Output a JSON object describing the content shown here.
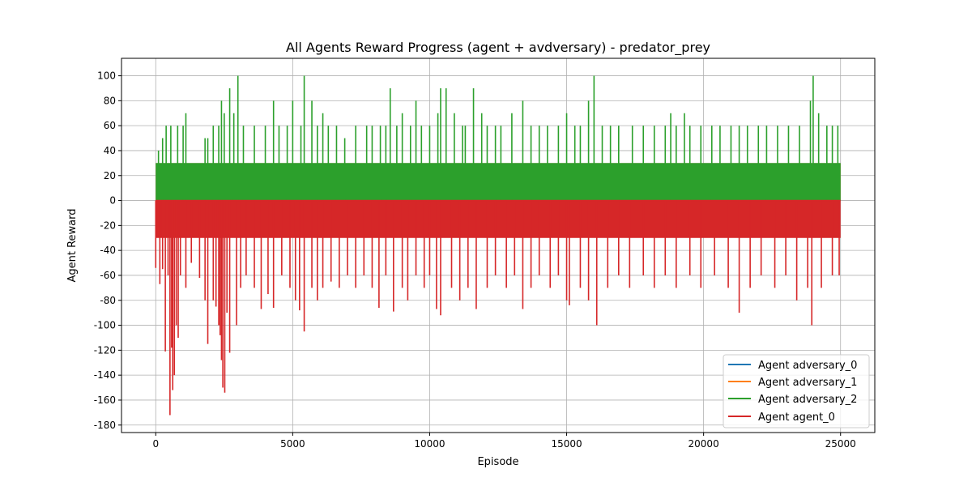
{
  "chart_data": {
    "type": "line",
    "title": "All Agents Reward Progress (agent + avdversary) - predator_prey",
    "xlabel": "Episode",
    "ylabel": "Agent Reward",
    "xlim": [
      -1250,
      26250
    ],
    "ylim": [
      -186,
      114
    ],
    "x_ticks": [
      0,
      5000,
      10000,
      15000,
      20000,
      25000
    ],
    "y_ticks": [
      -180,
      -160,
      -140,
      -120,
      -100,
      -80,
      -60,
      -40,
      -20,
      0,
      20,
      40,
      60,
      80,
      100
    ],
    "grid": true,
    "legend_position": "lower-right",
    "episodes": 25000,
    "series": [
      {
        "name": "Agent adversary_0",
        "color": "#1f77b4",
        "baseline": 0,
        "upper_band": 30,
        "lower_band": 0,
        "peaks": []
      },
      {
        "name": "Agent adversary_1",
        "color": "#ff7f0e",
        "baseline": 0,
        "upper_band": 30,
        "lower_band": 0,
        "peaks": []
      },
      {
        "name": "Agent adversary_2",
        "color": "#2ca02c",
        "baseline": 0,
        "upper_band": 30,
        "lower_band": 0,
        "peaks": [
          [
            100,
            40
          ],
          [
            250,
            50
          ],
          [
            380,
            60
          ],
          [
            550,
            60
          ],
          [
            800,
            60
          ],
          [
            1000,
            60
          ],
          [
            1100,
            70
          ],
          [
            1800,
            50
          ],
          [
            1900,
            50
          ],
          [
            2100,
            60
          ],
          [
            2300,
            60
          ],
          [
            2400,
            80
          ],
          [
            2500,
            70
          ],
          [
            2700,
            90
          ],
          [
            2850,
            70
          ],
          [
            3000,
            100
          ],
          [
            3200,
            60
          ],
          [
            3600,
            60
          ],
          [
            4000,
            60
          ],
          [
            4300,
            80
          ],
          [
            4500,
            60
          ],
          [
            4800,
            60
          ],
          [
            5000,
            80
          ],
          [
            5300,
            60
          ],
          [
            5420,
            100
          ],
          [
            5700,
            80
          ],
          [
            5900,
            60
          ],
          [
            6100,
            70
          ],
          [
            6300,
            60
          ],
          [
            6600,
            60
          ],
          [
            6900,
            50
          ],
          [
            7300,
            60
          ],
          [
            7700,
            60
          ],
          [
            7900,
            60
          ],
          [
            8200,
            60
          ],
          [
            8400,
            60
          ],
          [
            8560,
            90
          ],
          [
            8800,
            60
          ],
          [
            9000,
            70
          ],
          [
            9300,
            60
          ],
          [
            9500,
            80
          ],
          [
            9700,
            60
          ],
          [
            10000,
            60
          ],
          [
            10300,
            70
          ],
          [
            10400,
            90
          ],
          [
            10600,
            90
          ],
          [
            10900,
            70
          ],
          [
            11200,
            60
          ],
          [
            11300,
            60
          ],
          [
            11600,
            90
          ],
          [
            11900,
            70
          ],
          [
            12100,
            60
          ],
          [
            12400,
            60
          ],
          [
            12600,
            60
          ],
          [
            13000,
            70
          ],
          [
            13400,
            80
          ],
          [
            13700,
            60
          ],
          [
            14000,
            60
          ],
          [
            14300,
            60
          ],
          [
            14700,
            60
          ],
          [
            15000,
            70
          ],
          [
            15300,
            60
          ],
          [
            15500,
            60
          ],
          [
            15800,
            80
          ],
          [
            16000,
            100
          ],
          [
            16300,
            60
          ],
          [
            16600,
            60
          ],
          [
            16900,
            60
          ],
          [
            17400,
            60
          ],
          [
            17800,
            60
          ],
          [
            18200,
            60
          ],
          [
            18600,
            60
          ],
          [
            18800,
            70
          ],
          [
            19000,
            60
          ],
          [
            19300,
            70
          ],
          [
            19500,
            60
          ],
          [
            19900,
            60
          ],
          [
            20300,
            60
          ],
          [
            20600,
            60
          ],
          [
            21000,
            60
          ],
          [
            21300,
            60
          ],
          [
            21600,
            60
          ],
          [
            22000,
            60
          ],
          [
            22300,
            60
          ],
          [
            22700,
            60
          ],
          [
            23100,
            60
          ],
          [
            23500,
            60
          ],
          [
            23900,
            80
          ],
          [
            24000,
            100
          ],
          [
            24200,
            70
          ],
          [
            24500,
            60
          ],
          [
            24700,
            60
          ],
          [
            24900,
            60
          ]
        ]
      },
      {
        "name": "Agent agent_0",
        "color": "#d62728",
        "baseline": 0,
        "upper_band": 0,
        "lower_band": -30,
        "peaks": [
          [
            0,
            -54
          ],
          [
            150,
            -67
          ],
          [
            250,
            -55
          ],
          [
            350,
            -121
          ],
          [
            450,
            -60
          ],
          [
            520,
            -172
          ],
          [
            580,
            -118
          ],
          [
            620,
            -152
          ],
          [
            680,
            -140
          ],
          [
            750,
            -100
          ],
          [
            820,
            -110
          ],
          [
            900,
            -60
          ],
          [
            1100,
            -70
          ],
          [
            1300,
            -50
          ],
          [
            1600,
            -62
          ],
          [
            1800,
            -80
          ],
          [
            1900,
            -115
          ],
          [
            2100,
            -80
          ],
          [
            2200,
            -85
          ],
          [
            2300,
            -100
          ],
          [
            2350,
            -108
          ],
          [
            2400,
            -128
          ],
          [
            2450,
            -150
          ],
          [
            2520,
            -154
          ],
          [
            2600,
            -90
          ],
          [
            2700,
            -122
          ],
          [
            2950,
            -100
          ],
          [
            3100,
            -70
          ],
          [
            3300,
            -60
          ],
          [
            3600,
            -70
          ],
          [
            3850,
            -87
          ],
          [
            4100,
            -75
          ],
          [
            4300,
            -86
          ],
          [
            4600,
            -60
          ],
          [
            4900,
            -70
          ],
          [
            5100,
            -80
          ],
          [
            5250,
            -88
          ],
          [
            5420,
            -105
          ],
          [
            5700,
            -70
          ],
          [
            5900,
            -80
          ],
          [
            6100,
            -70
          ],
          [
            6400,
            -65
          ],
          [
            6700,
            -70
          ],
          [
            7000,
            -60
          ],
          [
            7300,
            -70
          ],
          [
            7600,
            -60
          ],
          [
            7900,
            -70
          ],
          [
            8150,
            -86
          ],
          [
            8400,
            -60
          ],
          [
            8680,
            -89
          ],
          [
            9000,
            -70
          ],
          [
            9200,
            -80
          ],
          [
            9500,
            -60
          ],
          [
            9800,
            -70
          ],
          [
            10000,
            -60
          ],
          [
            10250,
            -87
          ],
          [
            10400,
            -92
          ],
          [
            10800,
            -70
          ],
          [
            11100,
            -80
          ],
          [
            11400,
            -70
          ],
          [
            11700,
            -87
          ],
          [
            12100,
            -70
          ],
          [
            12400,
            -60
          ],
          [
            12800,
            -70
          ],
          [
            13100,
            -60
          ],
          [
            13400,
            -87
          ],
          [
            13700,
            -70
          ],
          [
            14000,
            -60
          ],
          [
            14400,
            -70
          ],
          [
            14700,
            -60
          ],
          [
            15000,
            -80
          ],
          [
            15100,
            -84
          ],
          [
            15500,
            -70
          ],
          [
            15800,
            -80
          ],
          [
            16100,
            -100
          ],
          [
            16500,
            -70
          ],
          [
            16900,
            -60
          ],
          [
            17300,
            -70
          ],
          [
            17800,
            -60
          ],
          [
            18200,
            -70
          ],
          [
            18600,
            -60
          ],
          [
            19000,
            -70
          ],
          [
            19500,
            -60
          ],
          [
            19900,
            -70
          ],
          [
            20400,
            -60
          ],
          [
            20900,
            -70
          ],
          [
            21300,
            -90
          ],
          [
            21700,
            -70
          ],
          [
            22100,
            -60
          ],
          [
            22600,
            -70
          ],
          [
            23000,
            -60
          ],
          [
            23400,
            -80
          ],
          [
            23800,
            -70
          ],
          [
            23950,
            -100
          ],
          [
            24300,
            -70
          ],
          [
            24700,
            -60
          ],
          [
            24950,
            -60
          ]
        ]
      }
    ]
  },
  "legend": {
    "entries": [
      "Agent adversary_0",
      "Agent adversary_1",
      "Agent adversary_2",
      "Agent agent_0"
    ]
  }
}
